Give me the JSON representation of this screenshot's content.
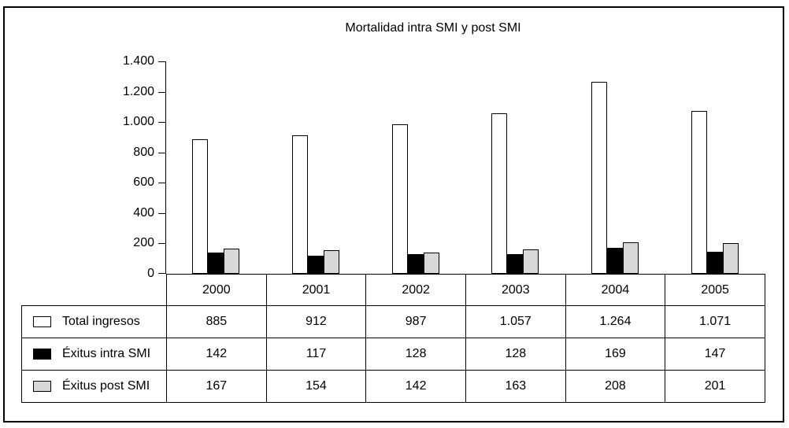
{
  "chart_data": {
    "type": "bar",
    "title": "Mortalidad intra SMI y post SMI",
    "categories": [
      "2000",
      "2001",
      "2002",
      "2003",
      "2004",
      "2005"
    ],
    "series": [
      {
        "name": "Total ingresos",
        "color": "#ffffff",
        "values": [
          885,
          912,
          987,
          1057,
          1264,
          1071
        ],
        "labels": [
          "885",
          "912",
          "987",
          "1.057",
          "1.264",
          "1.071"
        ]
      },
      {
        "name": "Éxitus intra SMI",
        "color": "#000000",
        "values": [
          142,
          117,
          128,
          128,
          169,
          147
        ],
        "labels": [
          "142",
          "117",
          "128",
          "128",
          "169",
          "147"
        ]
      },
      {
        "name": "Éxitus post SMI",
        "color": "#d8d8d8",
        "values": [
          167,
          154,
          142,
          163,
          208,
          201
        ],
        "labels": [
          "167",
          "154",
          "142",
          "163",
          "208",
          "201"
        ]
      }
    ],
    "ylim": [
      0,
      1400
    ],
    "ytick_step": 200,
    "ytick_labels": [
      "0",
      "200",
      "400",
      "600",
      "800",
      "1.000",
      "1.200",
      "1.400"
    ],
    "xlabel": "",
    "ylabel": "",
    "grid": false,
    "legend_position": "table-rows-left"
  }
}
